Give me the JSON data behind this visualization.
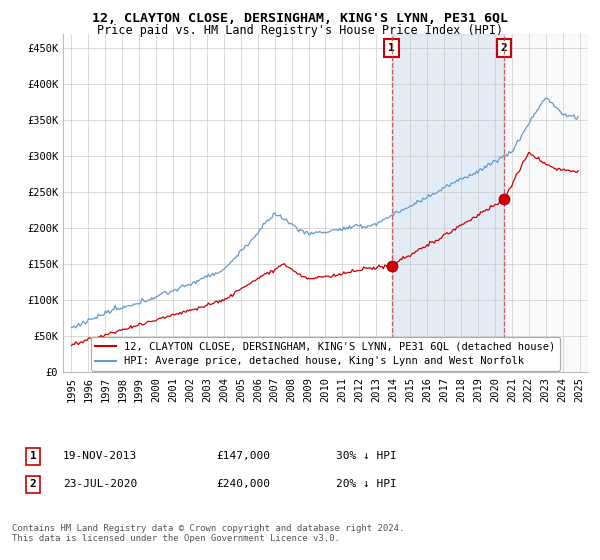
{
  "title": "12, CLAYTON CLOSE, DERSINGHAM, KING'S LYNN, PE31 6QL",
  "subtitle": "Price paid vs. HM Land Registry's House Price Index (HPI)",
  "ylabel_ticks": [
    "£0",
    "£50K",
    "£100K",
    "£150K",
    "£200K",
    "£250K",
    "£300K",
    "£350K",
    "£400K",
    "£450K"
  ],
  "ytick_values": [
    0,
    50000,
    100000,
    150000,
    200000,
    250000,
    300000,
    350000,
    400000,
    450000
  ],
  "ylim": [
    0,
    470000
  ],
  "xlim_start": 1994.5,
  "xlim_end": 2025.5,
  "red_line_color": "#cc0000",
  "blue_line_color": "#6699cc",
  "shade_color": "#ddeeff",
  "sale1_x": 2013.9,
  "sale1_y": 147000,
  "sale1_label": "1",
  "sale1_date": "19-NOV-2013",
  "sale1_price": "£147,000",
  "sale1_hpi": "30% ↓ HPI",
  "sale2_x": 2020.55,
  "sale2_y": 240000,
  "sale2_label": "2",
  "sale2_date": "23-JUL-2020",
  "sale2_price": "£240,000",
  "sale2_hpi": "20% ↓ HPI",
  "legend_red": "12, CLAYTON CLOSE, DERSINGHAM, KING'S LYNN, PE31 6QL (detached house)",
  "legend_blue": "HPI: Average price, detached house, King's Lynn and West Norfolk",
  "footnote": "Contains HM Land Registry data © Crown copyright and database right 2024.\nThis data is licensed under the Open Government Licence v3.0.",
  "background_color": "#ffffff",
  "grid_color": "#cccccc",
  "title_fontsize": 9.5,
  "subtitle_fontsize": 8.5,
  "tick_fontsize": 7.5,
  "legend_fontsize": 7.5,
  "footnote_fontsize": 6.5
}
